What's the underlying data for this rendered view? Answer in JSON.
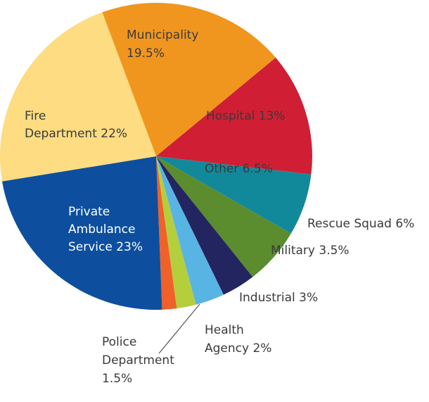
{
  "chart_data": {
    "type": "pie",
    "title": "",
    "slices": [
      {
        "label": "Municipality",
        "value": 19.5,
        "color": "#F0961E"
      },
      {
        "label": "Hospital",
        "value": 13,
        "color": "#D01F35"
      },
      {
        "label": "Other",
        "value": 6.5,
        "color": "#12899A"
      },
      {
        "label": "Rescue Squad",
        "value": 6,
        "color": "#5B8C2E"
      },
      {
        "label": "Military",
        "value": 3.5,
        "color": "#232560"
      },
      {
        "label": "Industrial",
        "value": 3,
        "color": "#58B4E2"
      },
      {
        "label": "Health Agency",
        "value": 2,
        "color": "#B4CE3C"
      },
      {
        "label": "Police Department",
        "value": 1.5,
        "color": "#F0612A"
      },
      {
        "label": "Private Ambulance Service",
        "value": 23,
        "color": "#0D4F9E"
      },
      {
        "label": "Fire Department",
        "value": 22,
        "color": "#FDDC82"
      }
    ],
    "labels": [
      {
        "lines": [
          "Municipality",
          "19.5%"
        ],
        "color": "#3a3a3a"
      },
      {
        "lines": [
          "Hospital 13%"
        ],
        "color": "#3a3a3a"
      },
      {
        "lines": [
          "Other 6.5%"
        ],
        "color": "#3a3a3a"
      },
      {
        "lines": [
          "Rescue Squad 6%"
        ],
        "color": "#3a3a3a"
      },
      {
        "lines": [
          "Military 3.5%"
        ],
        "color": "#3a3a3a"
      },
      {
        "lines": [
          "Industrial 3%"
        ],
        "color": "#3a3a3a"
      },
      {
        "lines": [
          "Health",
          "Agency 2%"
        ],
        "color": "#3a3a3a"
      },
      {
        "lines": [
          "Police",
          "Department",
          "1.5%"
        ],
        "color": "#3a3a3a"
      },
      {
        "lines": [
          "Private",
          "Ambulance",
          "Service 23%"
        ],
        "color": "#ffffff"
      },
      {
        "lines": [
          "Fire",
          "Department 22%"
        ],
        "color": "#3a3a3a"
      }
    ],
    "legend": "none"
  }
}
